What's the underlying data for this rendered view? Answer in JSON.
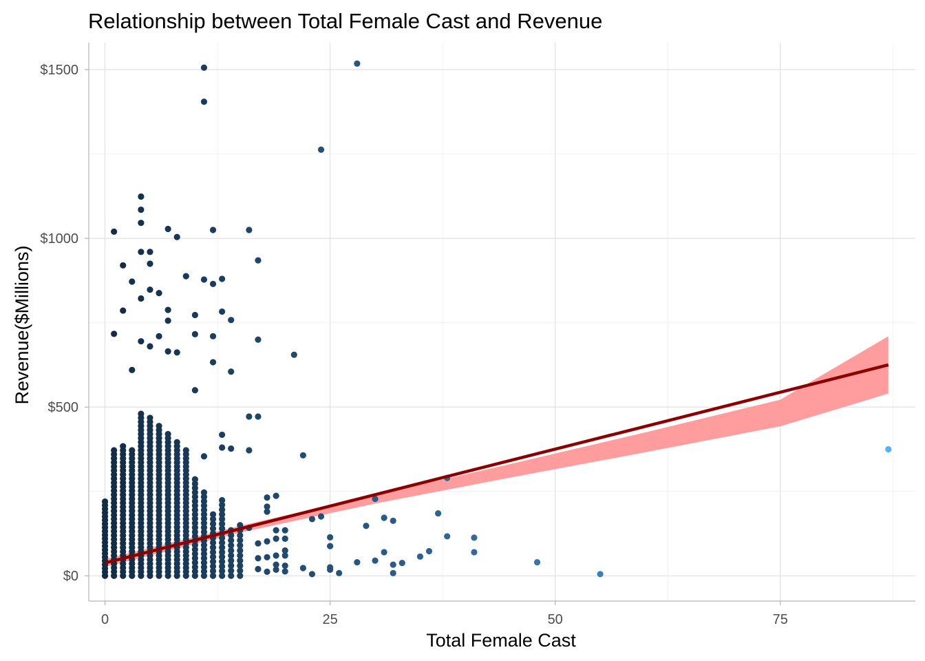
{
  "chart_data": {
    "type": "scatter",
    "title": "Relationship between Total Female Cast and Revenue",
    "xlabel": "Total Female Cast",
    "ylabel": "Revenue($Millions)",
    "xlim": [
      -1.8,
      90
    ],
    "ylim": [
      -75,
      1580
    ],
    "x_ticks": [
      0,
      25,
      50,
      75
    ],
    "x_tick_labels": [
      "0",
      "25",
      "50",
      "75"
    ],
    "y_ticks": [
      0,
      500,
      1000,
      1500
    ],
    "y_tick_labels": [
      "$0",
      "$500",
      "$1000",
      "$1500"
    ],
    "grid": true,
    "legend": "none",
    "point_color_scale": {
      "low": "#132B43",
      "high": "#56B1F7",
      "mapped_to": "x",
      "range": [
        0,
        87
      ]
    },
    "outlier_points": [
      {
        "x": 11,
        "y": 1506
      },
      {
        "x": 11,
        "y": 1405
      },
      {
        "x": 28,
        "y": 1518
      },
      {
        "x": 24,
        "y": 1263
      },
      {
        "x": 4,
        "y": 1124
      },
      {
        "x": 4,
        "y": 1085
      },
      {
        "x": 4,
        "y": 1046
      },
      {
        "x": 1,
        "y": 1020
      },
      {
        "x": 7,
        "y": 1028
      },
      {
        "x": 12,
        "y": 1025
      },
      {
        "x": 16,
        "y": 1025
      },
      {
        "x": 8,
        "y": 1004
      },
      {
        "x": 4,
        "y": 960
      },
      {
        "x": 5,
        "y": 960
      },
      {
        "x": 5,
        "y": 925
      },
      {
        "x": 2,
        "y": 920
      },
      {
        "x": 17,
        "y": 935
      },
      {
        "x": 9,
        "y": 888
      },
      {
        "x": 11,
        "y": 878
      },
      {
        "x": 13,
        "y": 880
      },
      {
        "x": 12,
        "y": 865
      },
      {
        "x": 3,
        "y": 872
      },
      {
        "x": 5,
        "y": 848
      },
      {
        "x": 6,
        "y": 838
      },
      {
        "x": 4,
        "y": 822
      },
      {
        "x": 2,
        "y": 786
      },
      {
        "x": 7,
        "y": 788
      },
      {
        "x": 13,
        "y": 783
      },
      {
        "x": 10,
        "y": 773
      },
      {
        "x": 14,
        "y": 758
      },
      {
        "x": 7,
        "y": 756
      },
      {
        "x": 1,
        "y": 717
      },
      {
        "x": 6,
        "y": 710
      },
      {
        "x": 10,
        "y": 716
      },
      {
        "x": 12,
        "y": 710
      },
      {
        "x": 17,
        "y": 700
      },
      {
        "x": 4,
        "y": 695
      },
      {
        "x": 5,
        "y": 680
      },
      {
        "x": 7,
        "y": 665
      },
      {
        "x": 8,
        "y": 662
      },
      {
        "x": 21,
        "y": 655
      },
      {
        "x": 12,
        "y": 633
      },
      {
        "x": 14,
        "y": 605
      },
      {
        "x": 3,
        "y": 610
      },
      {
        "x": 10,
        "y": 550
      },
      {
        "x": 16,
        "y": 472
      },
      {
        "x": 17,
        "y": 472
      },
      {
        "x": 13,
        "y": 418
      },
      {
        "x": 13,
        "y": 380
      },
      {
        "x": 14,
        "y": 377
      },
      {
        "x": 16,
        "y": 372
      },
      {
        "x": 22,
        "y": 357
      },
      {
        "x": 11,
        "y": 354
      },
      {
        "x": 87,
        "y": 375
      },
      {
        "x": 38,
        "y": 290
      },
      {
        "x": 30,
        "y": 228
      },
      {
        "x": 18,
        "y": 232
      },
      {
        "x": 19,
        "y": 237
      },
      {
        "x": 18,
        "y": 205
      },
      {
        "x": 18,
        "y": 190
      },
      {
        "x": 37,
        "y": 185
      },
      {
        "x": 24,
        "y": 176
      },
      {
        "x": 31,
        "y": 172
      },
      {
        "x": 32,
        "y": 163
      },
      {
        "x": 23,
        "y": 168
      },
      {
        "x": 29,
        "y": 148
      },
      {
        "x": 16,
        "y": 142
      },
      {
        "x": 19,
        "y": 135
      },
      {
        "x": 20,
        "y": 135
      },
      {
        "x": 25,
        "y": 114
      },
      {
        "x": 38,
        "y": 117
      },
      {
        "x": 41,
        "y": 113
      },
      {
        "x": 19,
        "y": 110
      },
      {
        "x": 20,
        "y": 110
      },
      {
        "x": 18,
        "y": 102
      },
      {
        "x": 17,
        "y": 96
      },
      {
        "x": 25,
        "y": 88
      },
      {
        "x": 20,
        "y": 75
      },
      {
        "x": 41,
        "y": 70
      },
      {
        "x": 36,
        "y": 73
      },
      {
        "x": 31,
        "y": 70
      },
      {
        "x": 35,
        "y": 57
      },
      {
        "x": 19,
        "y": 60
      },
      {
        "x": 20,
        "y": 60
      },
      {
        "x": 18,
        "y": 55
      },
      {
        "x": 17,
        "y": 52
      },
      {
        "x": 30,
        "y": 45
      },
      {
        "x": 28,
        "y": 40
      },
      {
        "x": 48,
        "y": 40
      },
      {
        "x": 33,
        "y": 38
      },
      {
        "x": 32,
        "y": 33
      },
      {
        "x": 19,
        "y": 33
      },
      {
        "x": 20,
        "y": 30
      },
      {
        "x": 22,
        "y": 23
      },
      {
        "x": 25,
        "y": 25
      },
      {
        "x": 25,
        "y": 18
      },
      {
        "x": 19,
        "y": 18
      },
      {
        "x": 20,
        "y": 13
      },
      {
        "x": 26,
        "y": 8
      },
      {
        "x": 32,
        "y": 8
      },
      {
        "x": 23,
        "y": 5
      },
      {
        "x": 55,
        "y": 5
      },
      {
        "x": 18,
        "y": 12
      },
      {
        "x": 17,
        "y": 20
      }
    ],
    "dense_region_columns": [
      {
        "x": 0,
        "ymax": 230,
        "step": 11
      },
      {
        "x": 1,
        "ymax": 375,
        "step": 12
      },
      {
        "x": 2,
        "ymax": 385,
        "step": 12
      },
      {
        "x": 3,
        "ymax": 380,
        "step": 12
      },
      {
        "x": 4,
        "ymax": 480,
        "step": 12
      },
      {
        "x": 5,
        "ymax": 470,
        "step": 12
      },
      {
        "x": 6,
        "ymax": 450,
        "step": 12
      },
      {
        "x": 7,
        "ymax": 430,
        "step": 12
      },
      {
        "x": 8,
        "ymax": 400,
        "step": 12
      },
      {
        "x": 9,
        "ymax": 380,
        "step": 12
      },
      {
        "x": 10,
        "ymax": 290,
        "step": 13
      },
      {
        "x": 11,
        "ymax": 250,
        "step": 13
      },
      {
        "x": 12,
        "ymax": 195,
        "step": 14
      },
      {
        "x": 13,
        "ymax": 225,
        "step": 14
      },
      {
        "x": 14,
        "ymax": 145,
        "step": 15
      },
      {
        "x": 15,
        "ymax": 160,
        "step": 15
      }
    ],
    "trend_line": {
      "type": "linear",
      "color": "#8B0000",
      "x_start": 0,
      "y_start": 38,
      "x_end": 87,
      "y_end": 625
    },
    "confidence_band": {
      "color": "#FF9799",
      "x": [
        0,
        15,
        30,
        45,
        60,
        75,
        87
      ],
      "lower": [
        26,
        128,
        214,
        291,
        366,
        443,
        540
      ],
      "upper": [
        50,
        148,
        240,
        331,
        425,
        522,
        710
      ]
    }
  }
}
